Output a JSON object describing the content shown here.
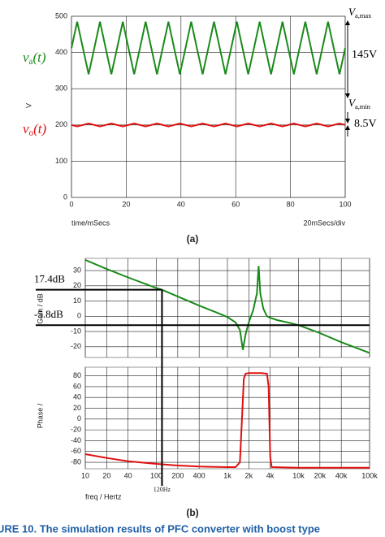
{
  "chart_data": [
    {
      "type": "line",
      "label": "(a)",
      "ylabel": "V",
      "xlabel": "time/mSecs",
      "xnote": "20mSecs/div",
      "xlim": [
        0,
        100
      ],
      "xticks": [
        0,
        20,
        40,
        60,
        80,
        100
      ],
      "ylim": [
        0,
        500
      ],
      "yticks": [
        0,
        100,
        200,
        300,
        400,
        500
      ],
      "grid": true,
      "x": [
        0,
        2.08,
        4.17,
        6.25,
        8.33,
        10.42,
        12.5,
        14.58,
        16.67,
        18.75,
        20.83,
        22.92,
        25,
        27.08,
        29.17,
        31.25,
        33.33,
        35.42,
        37.5,
        39.58,
        41.67,
        43.75,
        45.83,
        47.92,
        50,
        52.08,
        54.17,
        56.25,
        58.33,
        60.42,
        62.5,
        64.58,
        66.67,
        68.75,
        70.83,
        72.92,
        75,
        77.08,
        79.17,
        81.25,
        83.33,
        85.42,
        87.5,
        89.58,
        91.67,
        93.75,
        95.83,
        97.92,
        100
      ],
      "series": [
        {
          "name": {
            "v": "v",
            "sub": "a",
            "tail": "(t)"
          },
          "color": "#1a8a1a",
          "values": [
            412,
            485,
            412,
            340,
            412,
            485,
            412,
            340,
            412,
            485,
            412,
            340,
            412,
            485,
            412,
            340,
            412,
            485,
            412,
            340,
            412,
            485,
            412,
            340,
            412,
            485,
            412,
            340,
            412,
            485,
            412,
            340,
            412,
            485,
            412,
            340,
            412,
            485,
            412,
            340,
            412,
            485,
            412,
            340,
            412,
            485,
            412,
            340,
            412
          ]
        },
        {
          "name": {
            "v": "v",
            "sub": "o",
            "tail": "(t)"
          },
          "color": "#e01010",
          "values": [
            200,
            196,
            200,
            204,
            200,
            196,
            200,
            204,
            200,
            196,
            200,
            204,
            200,
            196,
            200,
            204,
            200,
            196,
            200,
            204,
            200,
            196,
            200,
            204,
            200,
            196,
            200,
            204,
            200,
            196,
            200,
            204,
            200,
            196,
            200,
            204,
            200,
            196,
            200,
            204,
            200,
            196,
            200,
            204,
            200,
            196,
            200,
            204,
            200
          ]
        }
      ],
      "annotations": {
        "vmax": {
          "v": "V",
          "sub": "a,max"
        },
        "vmin": {
          "v": "V",
          "sub": "a,min"
        },
        "span": "145V",
        "ripple": "8.5V"
      }
    },
    {
      "type": "line",
      "ylabel": "Gain / dB",
      "log_x": true,
      "xlim": [
        10,
        100000
      ],
      "ylim": [
        -27,
        38
      ],
      "yticks": [
        -20,
        -10,
        0,
        10,
        20,
        30
      ],
      "grid": true,
      "x": [
        10,
        20,
        40,
        100,
        120,
        200,
        400,
        700,
        1000,
        1300,
        1500,
        1650,
        1800,
        2000,
        2300,
        2600,
        2750,
        2900,
        3200,
        3600,
        4000,
        5000,
        7000,
        10000,
        20000,
        40000,
        100000
      ],
      "series": [
        {
          "color": "#1a8a1a",
          "values": [
            37,
            31,
            25.5,
            18.5,
            17.4,
            13,
            7,
            2.5,
            -0.5,
            -4,
            -9,
            -22,
            -12,
            -4,
            4,
            15,
            33,
            15,
            5,
            0,
            -1,
            -2.5,
            -4,
            -5.8,
            -11,
            -17,
            -24
          ]
        }
      ],
      "hlines": [
        {
          "value": 17.4,
          "label": "17.4dB"
        },
        {
          "value": -5.8,
          "label": "-5.8dB"
        }
      ],
      "vline": {
        "value": 120,
        "label": "120Hz"
      }
    },
    {
      "type": "line",
      "ylabel": "Phase /",
      "xlabel": "freq / Hertz",
      "label": "(b)",
      "log_x": true,
      "xlim": [
        10,
        100000
      ],
      "xticks": [
        10,
        20,
        40,
        100,
        200,
        400,
        {
          "value": 1000,
          "label": "1k"
        },
        {
          "value": 2000,
          "label": "2k"
        },
        {
          "value": 4000,
          "label": "4k"
        },
        {
          "value": 10000,
          "label": "10k"
        },
        {
          "value": 20000,
          "label": "20k"
        },
        {
          "value": 40000,
          "label": "40k"
        },
        {
          "value": 100000,
          "label": "100k"
        }
      ],
      "ylim": [
        -92,
        96
      ],
      "yticks": [
        -80,
        -60,
        -40,
        -20,
        0,
        20,
        40,
        60,
        80
      ],
      "grid": true,
      "x": [
        10,
        20,
        40,
        100,
        200,
        400,
        1000,
        1300,
        1500,
        1600,
        1700,
        1800,
        2000,
        3000,
        3600,
        3800,
        4000,
        4200,
        10000,
        100000
      ],
      "series": [
        {
          "color": "#e01010",
          "values": [
            -65,
            -72,
            -78,
            -83,
            -86,
            -88,
            -89,
            -89,
            -80,
            0,
            75,
            84,
            85,
            85,
            84,
            60,
            -70,
            -89,
            -90,
            -90
          ]
        }
      ]
    }
  ],
  "caption": "URE 10.  The simulation results of PFC converter with boost type"
}
